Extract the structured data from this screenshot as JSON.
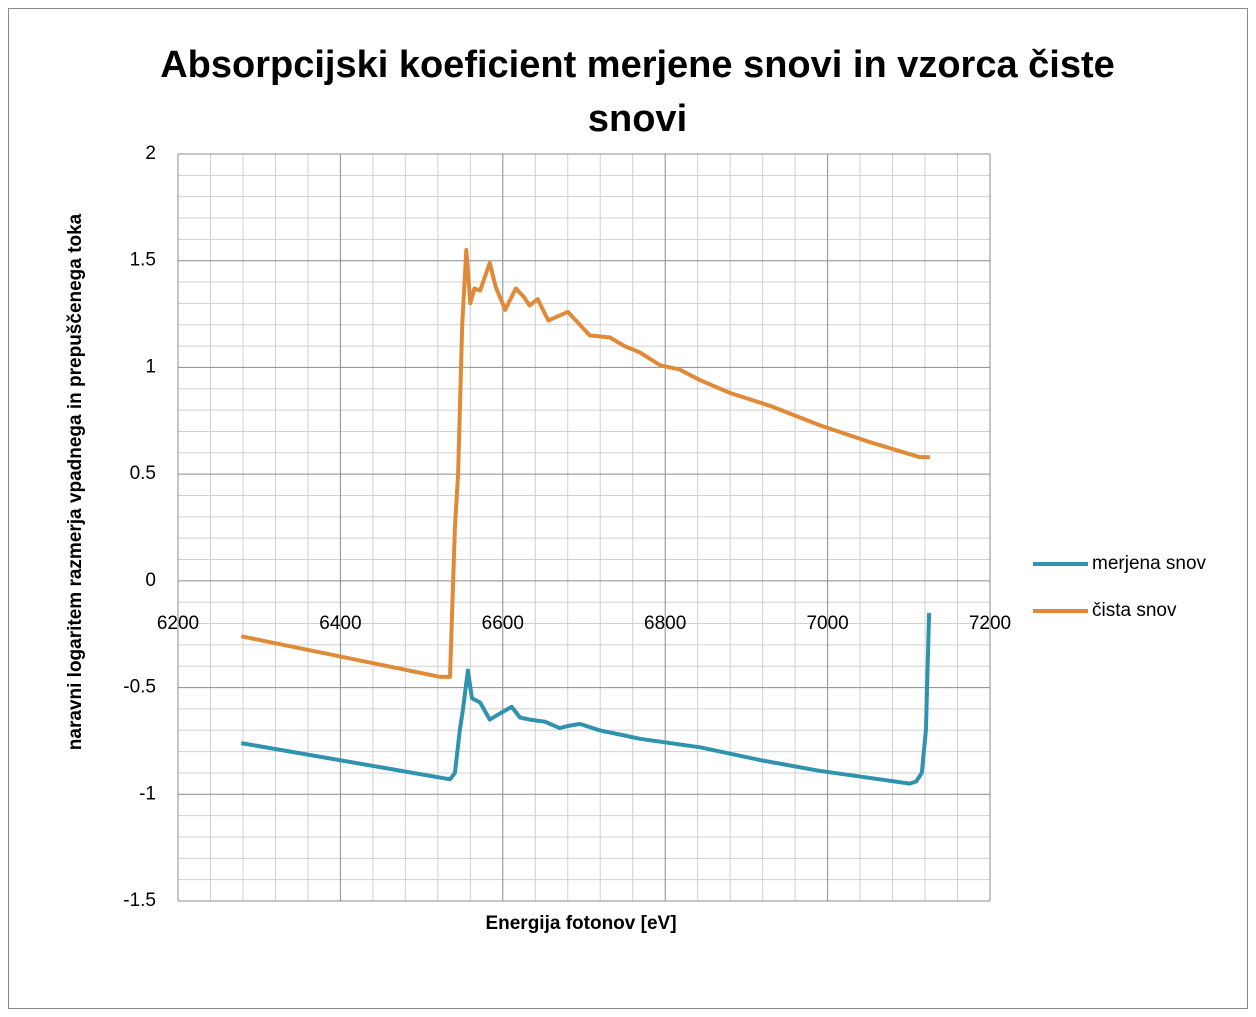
{
  "chart_data": {
    "type": "line",
    "title": "Absorpcijski koeficient merjene snovi in vzorca čiste snovi",
    "x_label": "Energija fotonov [eV]",
    "y_label": "naravni logaritem razmerja vpadnega in prepuščenega toka",
    "xlim": [
      6200,
      7200
    ],
    "xticks": [
      6200,
      6400,
      6600,
      6800,
      7000,
      7200
    ],
    "ylim": [
      -1.5,
      2
    ],
    "yticks": [
      -1.5,
      -1,
      -0.5,
      0,
      0.5,
      1,
      1.5,
      2
    ],
    "grid": {
      "major": true,
      "minor": true
    },
    "legend": "right",
    "series": [
      {
        "name": "merjena snov",
        "color": "#2f93ae",
        "x": [
          6278,
          6535,
          6541,
          6547,
          6551,
          6557,
          6562,
          6572,
          6584,
          6597,
          6611,
          6621,
          6633,
          6652,
          6670,
          6680,
          6695,
          6719,
          6744,
          6769,
          6843,
          6917,
          6990,
          7064,
          7101,
          7109,
          7116,
          7121,
          7125
        ],
        "values": [
          -0.76,
          -0.93,
          -0.9,
          -0.7,
          -0.6,
          -0.42,
          -0.55,
          -0.57,
          -0.65,
          -0.62,
          -0.59,
          -0.64,
          -0.65,
          -0.66,
          -0.69,
          -0.68,
          -0.67,
          -0.7,
          -0.72,
          -0.74,
          -0.78,
          -0.84,
          -0.89,
          -0.93,
          -0.95,
          -0.94,
          -0.9,
          -0.7,
          -0.15
        ]
      },
      {
        "name": "čista snov",
        "color": "#e08a38",
        "x": [
          6278,
          6523,
          6535,
          6541,
          6545,
          6550,
          6555,
          6560,
          6565,
          6572,
          6584,
          6591,
          6603,
          6616,
          6626,
          6633,
          6643,
          6656,
          6668,
          6680,
          6695,
          6707,
          6732,
          6750,
          6769,
          6794,
          6818,
          6843,
          6880,
          6929,
          6990,
          7052,
          7113,
          7126
        ],
        "values": [
          -0.26,
          -0.45,
          -0.45,
          0.25,
          0.5,
          1.2,
          1.55,
          1.3,
          1.37,
          1.36,
          1.49,
          1.38,
          1.27,
          1.37,
          1.33,
          1.29,
          1.32,
          1.22,
          1.24,
          1.26,
          1.2,
          1.15,
          1.14,
          1.1,
          1.07,
          1.01,
          0.99,
          0.94,
          0.88,
          0.82,
          0.73,
          0.65,
          0.58,
          0.58
        ]
      }
    ]
  }
}
